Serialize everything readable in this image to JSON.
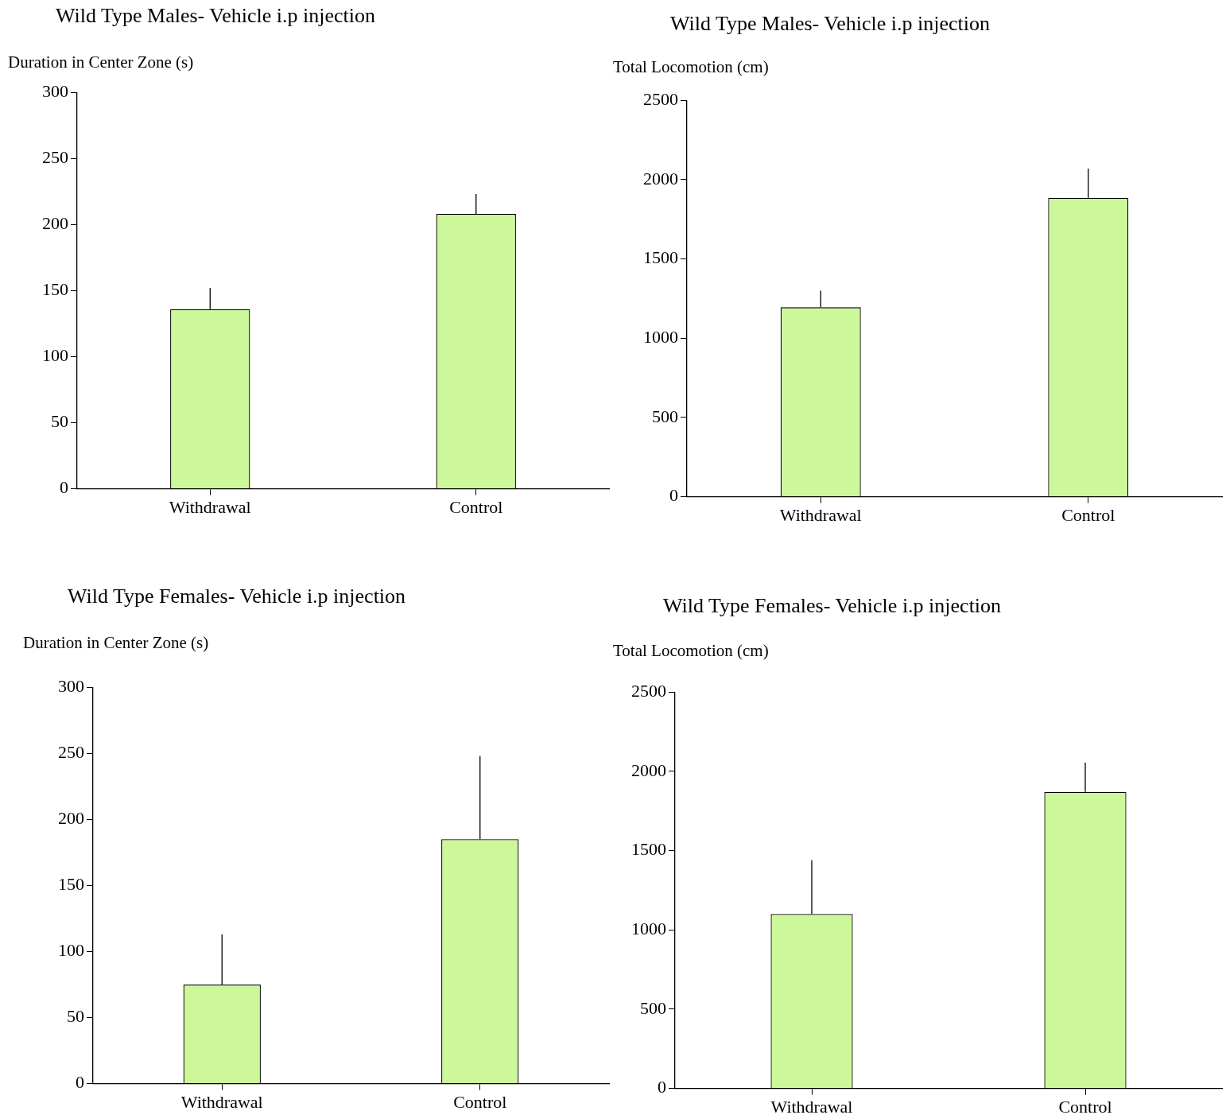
{
  "chart_data": [
    {
      "type": "bar",
      "title": "Wild Type Males- Vehicle i.p injection",
      "ylabel": "Duration in Center Zone (s)",
      "categories": [
        "Withdrawal",
        "Control"
      ],
      "values": [
        136,
        208
      ],
      "errors": [
        [
          136,
          152
        ],
        [
          208,
          223
        ]
      ],
      "color": "#ccf899",
      "ylim": [
        0,
        300
      ],
      "yticks": [
        0,
        50,
        100,
        150,
        200,
        250,
        300
      ]
    },
    {
      "type": "bar",
      "title": "Wild Type Males- Vehicle i.p injection",
      "ylabel": "Total Locomotion (cm)",
      "categories": [
        "Withdrawal",
        "Control"
      ],
      "values": [
        1195,
        1885
      ],
      "errors": [
        [
          1195,
          1300
        ],
        [
          1885,
          2070
        ]
      ],
      "color": "#ccf899",
      "ylim": [
        0,
        2500
      ],
      "yticks": [
        0,
        500,
        1000,
        1500,
        2000,
        2500
      ]
    },
    {
      "type": "bar",
      "title": "Wild Type Females- Vehicle i.p injection",
      "ylabel": "Duration in Center Zone (s)",
      "categories": [
        "Withdrawal",
        "Control"
      ],
      "values": [
        75,
        185
      ],
      "errors": [
        [
          75,
          113
        ],
        [
          185,
          248
        ]
      ],
      "color": "#ccf899",
      "ylim": [
        0,
        300
      ],
      "yticks": [
        0,
        50,
        100,
        150,
        200,
        250,
        300
      ]
    },
    {
      "type": "bar",
      "title": "Wild Type Females- Vehicle i.p injection",
      "ylabel": "Total Locomotion (cm)",
      "categories": [
        "Withdrawal",
        "Control"
      ],
      "values": [
        1100,
        1870
      ],
      "errors": [
        [
          1100,
          1440
        ],
        [
          1870,
          2055
        ]
      ],
      "color": "#ccf899",
      "ylim": [
        0,
        2500
      ],
      "yticks": [
        0,
        500,
        1000,
        1500,
        2000,
        2500
      ]
    }
  ]
}
